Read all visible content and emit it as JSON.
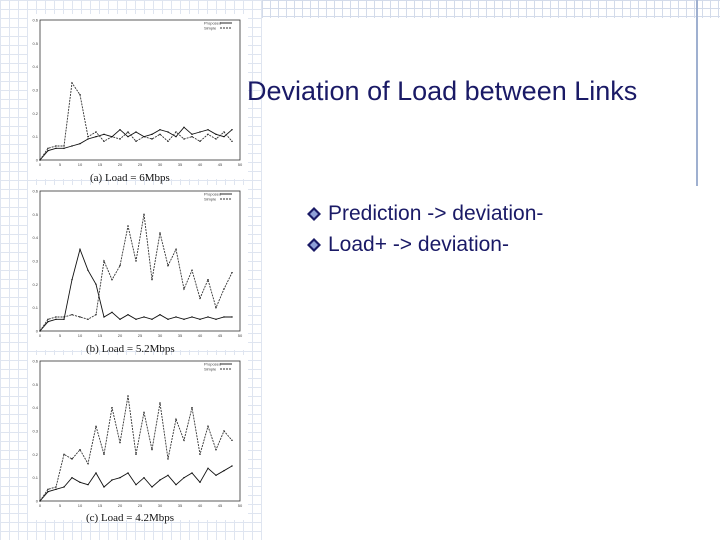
{
  "slide": {
    "title": "Deviation of Load between Links",
    "bullets": [
      "Prediction -> deviation-",
      "Load+ -> deviation-"
    ]
  },
  "colors": {
    "text": "#1a1a66",
    "bullet_icon": "#1a1a66"
  },
  "chart_data": [
    {
      "type": "line",
      "title": "(a) Load = 6Mbps",
      "xlim": [
        0,
        50
      ],
      "ylim": [
        0,
        0.6
      ],
      "xticks": [
        "0",
        "5",
        "10",
        "15",
        "20",
        "25",
        "30",
        "35",
        "40",
        "45",
        "50"
      ],
      "yticks": [
        "0",
        "0.1",
        "0.2",
        "0.3",
        "0.4",
        "0.5",
        "0.6"
      ],
      "legend": [
        "Proposed",
        "Simple"
      ],
      "series": [
        {
          "name": "Proposed",
          "x": [
            0,
            2,
            4,
            6,
            8,
            10,
            12,
            14,
            16,
            18,
            20,
            22,
            24,
            26,
            28,
            30,
            32,
            34,
            36,
            38,
            40,
            42,
            44,
            46,
            48
          ],
          "y": [
            0,
            0.04,
            0.05,
            0.05,
            0.06,
            0.07,
            0.09,
            0.1,
            0.11,
            0.1,
            0.13,
            0.1,
            0.12,
            0.1,
            0.11,
            0.13,
            0.12,
            0.1,
            0.14,
            0.11,
            0.12,
            0.13,
            0.11,
            0.1,
            0.13
          ]
        },
        {
          "name": "Simple",
          "x": [
            0,
            2,
            4,
            6,
            8,
            10,
            12,
            14,
            16,
            18,
            20,
            22,
            24,
            26,
            28,
            30,
            32,
            34,
            36,
            38,
            40,
            42,
            44,
            46,
            48
          ],
          "y": [
            0,
            0.05,
            0.06,
            0.06,
            0.33,
            0.28,
            0.1,
            0.12,
            0.08,
            0.1,
            0.09,
            0.12,
            0.08,
            0.1,
            0.09,
            0.11,
            0.08,
            0.12,
            0.09,
            0.1,
            0.08,
            0.11,
            0.09,
            0.12,
            0.08
          ]
        }
      ]
    },
    {
      "type": "line",
      "title": "(b) Load = 5.2Mbps",
      "xlim": [
        0,
        50
      ],
      "ylim": [
        0,
        0.6
      ],
      "xticks": [
        "0",
        "5",
        "10",
        "15",
        "20",
        "25",
        "30",
        "35",
        "40",
        "45",
        "50"
      ],
      "yticks": [
        "0",
        "0.1",
        "0.2",
        "0.3",
        "0.4",
        "0.5",
        "0.6"
      ],
      "legend": [
        "Proposed",
        "Simple"
      ],
      "series": [
        {
          "name": "Proposed",
          "x": [
            0,
            2,
            4,
            6,
            8,
            10,
            12,
            14,
            16,
            18,
            20,
            22,
            24,
            26,
            28,
            30,
            32,
            34,
            36,
            38,
            40,
            42,
            44,
            46,
            48
          ],
          "y": [
            0,
            0.04,
            0.05,
            0.05,
            0.22,
            0.35,
            0.26,
            0.2,
            0.06,
            0.08,
            0.05,
            0.07,
            0.05,
            0.06,
            0.05,
            0.07,
            0.05,
            0.06,
            0.05,
            0.06,
            0.05,
            0.06,
            0.05,
            0.06,
            0.06
          ]
        },
        {
          "name": "Simple",
          "x": [
            0,
            2,
            4,
            6,
            8,
            10,
            12,
            14,
            16,
            18,
            20,
            22,
            24,
            26,
            28,
            30,
            32,
            34,
            36,
            38,
            40,
            42,
            44,
            46,
            48
          ],
          "y": [
            0,
            0.05,
            0.06,
            0.06,
            0.07,
            0.06,
            0.05,
            0.07,
            0.3,
            0.22,
            0.28,
            0.45,
            0.3,
            0.5,
            0.22,
            0.42,
            0.28,
            0.35,
            0.18,
            0.26,
            0.14,
            0.22,
            0.1,
            0.18,
            0.25
          ]
        }
      ]
    },
    {
      "type": "line",
      "title": "(c) Load = 4.2Mbps",
      "xlim": [
        0,
        50
      ],
      "ylim": [
        0,
        0.6
      ],
      "xticks": [
        "0",
        "5",
        "10",
        "15",
        "20",
        "25",
        "30",
        "35",
        "40",
        "45",
        "50"
      ],
      "yticks": [
        "0",
        "0.1",
        "0.2",
        "0.3",
        "0.4",
        "0.5",
        "0.6"
      ],
      "legend": [
        "Proposed",
        "Simple"
      ],
      "series": [
        {
          "name": "Proposed",
          "x": [
            0,
            2,
            4,
            6,
            8,
            10,
            12,
            14,
            16,
            18,
            20,
            22,
            24,
            26,
            28,
            30,
            32,
            34,
            36,
            38,
            40,
            42,
            44,
            46,
            48
          ],
          "y": [
            0,
            0.04,
            0.05,
            0.06,
            0.1,
            0.08,
            0.07,
            0.12,
            0.06,
            0.09,
            0.1,
            0.12,
            0.07,
            0.1,
            0.06,
            0.09,
            0.11,
            0.07,
            0.1,
            0.12,
            0.08,
            0.14,
            0.11,
            0.13,
            0.15
          ]
        },
        {
          "name": "Simple",
          "x": [
            0,
            2,
            4,
            6,
            8,
            10,
            12,
            14,
            16,
            18,
            20,
            22,
            24,
            26,
            28,
            30,
            32,
            34,
            36,
            38,
            40,
            42,
            44,
            46,
            48
          ],
          "y": [
            0,
            0.05,
            0.06,
            0.2,
            0.18,
            0.22,
            0.16,
            0.32,
            0.2,
            0.4,
            0.25,
            0.45,
            0.2,
            0.38,
            0.22,
            0.42,
            0.18,
            0.35,
            0.26,
            0.4,
            0.2,
            0.32,
            0.22,
            0.3,
            0.26
          ]
        }
      ]
    }
  ]
}
